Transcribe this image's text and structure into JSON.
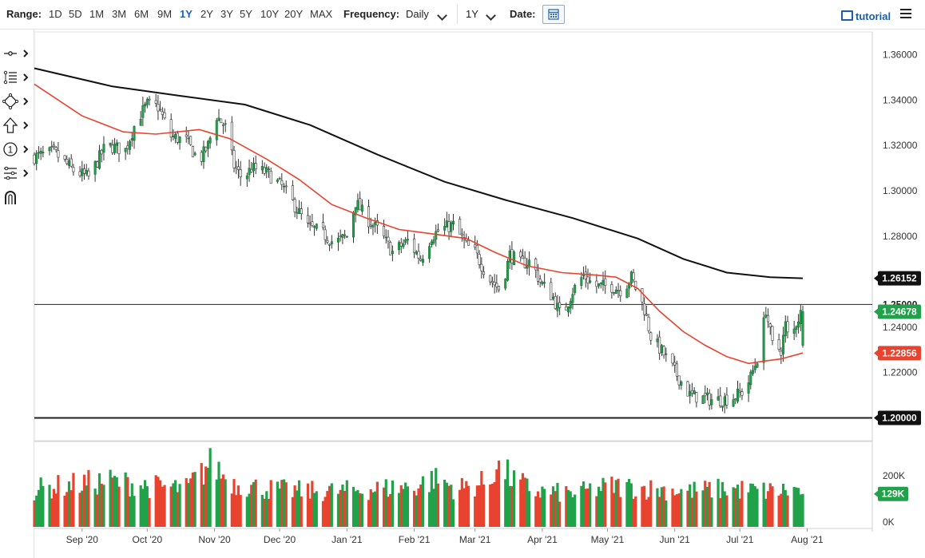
{
  "toolbar": {
    "range_label": "Range:",
    "ranges": [
      "1D",
      "5D",
      "1M",
      "3M",
      "6M",
      "9M",
      "1Y",
      "2Y",
      "3Y",
      "5Y",
      "10Y",
      "20Y",
      "MAX"
    ],
    "active_range": "1Y",
    "frequency_label": "Frequency:",
    "frequency_value": "Daily",
    "period_value": "1Y",
    "date_label": "Date:",
    "tutorial_label": "tutorial"
  },
  "tools": [
    {
      "name": "crosshair-tool-icon"
    },
    {
      "name": "trendline-tool-icon"
    },
    {
      "name": "shape-tool-icon"
    },
    {
      "name": "arrow-tool-icon"
    },
    {
      "name": "annotation-tool-icon"
    },
    {
      "name": "fibonacci-tool-icon"
    },
    {
      "name": "magnet-tool-icon"
    }
  ],
  "colors": {
    "up": "#21a24a",
    "down": "#e8432e",
    "ma_fast": "#e8432e",
    "ma_slow": "#111111",
    "tag_green": "#21a24a",
    "tag_red": "#e8432e",
    "tag_black": "#111111"
  },
  "chart_data": {
    "type": "candlestick",
    "price_axis": {
      "min": 1.19,
      "max": 1.37,
      "ticks": [
        "1.36000",
        "1.34000",
        "1.32000",
        "1.30000",
        "1.28000",
        "1.26000",
        "1.24000",
        "1.22000",
        "1.20000"
      ]
    },
    "x_ticks": [
      "Sep '20",
      "Oct '20",
      "Nov '20",
      "Dec '20",
      "Jan '21",
      "Feb '21",
      "Mar '21",
      "Apr '21",
      "May '21",
      "Jun '21",
      "Jul '21",
      "Aug '21"
    ],
    "x_range": [
      "2020-08-10",
      "2021-08-31"
    ],
    "closes": [
      [
        "2020-08-10",
        1.315
      ],
      [
        "2020-08-19",
        1.317
      ],
      [
        "2020-08-28",
        1.309
      ],
      [
        "2020-09-04",
        1.306
      ],
      [
        "2020-09-12",
        1.32
      ],
      [
        "2020-09-21",
        1.318
      ],
      [
        "2020-09-26",
        1.331
      ],
      [
        "2020-10-01",
        1.338
      ],
      [
        "2020-10-06",
        1.337
      ],
      [
        "2020-10-12",
        1.324
      ],
      [
        "2020-10-19",
        1.322
      ],
      [
        "2020-10-25",
        1.313
      ],
      [
        "2020-10-29",
        1.32
      ],
      [
        "2020-11-02",
        1.333
      ],
      [
        "2020-11-06",
        1.328
      ],
      [
        "2020-11-10",
        1.311
      ],
      [
        "2020-11-14",
        1.305
      ],
      [
        "2020-11-18",
        1.31
      ],
      [
        "2020-11-25",
        1.308
      ],
      [
        "2020-12-02",
        1.302
      ],
      [
        "2020-12-09",
        1.292
      ],
      [
        "2020-12-14",
        1.284
      ],
      [
        "2020-12-20",
        1.282
      ],
      [
        "2020-12-26",
        1.277
      ],
      [
        "2021-01-01",
        1.28
      ],
      [
        "2021-01-05",
        1.295
      ],
      [
        "2021-01-10",
        1.288
      ],
      [
        "2021-01-16",
        1.282
      ],
      [
        "2021-01-22",
        1.273
      ],
      [
        "2021-01-29",
        1.278
      ],
      [
        "2021-02-04",
        1.27
      ],
      [
        "2021-02-09",
        1.28
      ],
      [
        "2021-02-13",
        1.283
      ],
      [
        "2021-02-19",
        1.285
      ],
      [
        "2021-02-25",
        1.276
      ],
      [
        "2021-03-01",
        1.273
      ],
      [
        "2021-03-07",
        1.262
      ],
      [
        "2021-03-13",
        1.256
      ],
      [
        "2021-03-17",
        1.272
      ],
      [
        "2021-03-22",
        1.268
      ],
      [
        "2021-03-27",
        1.269
      ],
      [
        "2021-03-31",
        1.26
      ],
      [
        "2021-04-06",
        1.253
      ],
      [
        "2021-04-10",
        1.244
      ],
      [
        "2021-04-15",
        1.256
      ],
      [
        "2021-04-20",
        1.263
      ],
      [
        "2021-04-25",
        1.258
      ],
      [
        "2021-05-03",
        1.258
      ],
      [
        "2021-05-08",
        1.256
      ],
      [
        "2021-05-12",
        1.262
      ],
      [
        "2021-05-18",
        1.248
      ],
      [
        "2021-05-21",
        1.236
      ],
      [
        "2021-05-27",
        1.228
      ],
      [
        "2021-06-02",
        1.219
      ],
      [
        "2021-06-08",
        1.21
      ],
      [
        "2021-06-13",
        1.209
      ],
      [
        "2021-06-18",
        1.208
      ],
      [
        "2021-06-22",
        1.208
      ],
      [
        "2021-06-28",
        1.209
      ],
      [
        "2021-07-03",
        1.212
      ],
      [
        "2021-07-06",
        1.218
      ],
      [
        "2021-07-10",
        1.229
      ],
      [
        "2021-07-13",
        1.248
      ],
      [
        "2021-07-16",
        1.232
      ],
      [
        "2021-07-20",
        1.23
      ],
      [
        "2021-07-22",
        1.241
      ],
      [
        "2021-07-24",
        1.232
      ],
      [
        "2021-07-27",
        1.242
      ],
      [
        "2021-07-29",
        1.246
      ],
      [
        "2021-07-30",
        1.2468
      ]
    ],
    "series": [
      {
        "values_from": "closes",
        "kind": "ohlc"
      },
      {
        "kind": "moving-average-fast",
        "points": [
          [
            "2020-08-10",
            1.347
          ],
          [
            "2020-09-01",
            1.333
          ],
          [
            "2020-09-20",
            1.326
          ],
          [
            "2020-10-05",
            1.325
          ],
          [
            "2020-10-25",
            1.327
          ],
          [
            "2020-11-08",
            1.323
          ],
          [
            "2020-11-25",
            1.314
          ],
          [
            "2020-12-10",
            1.305
          ],
          [
            "2020-12-25",
            1.294
          ],
          [
            "2021-01-10",
            1.288
          ],
          [
            "2021-01-25",
            1.283
          ],
          [
            "2021-02-10",
            1.281
          ],
          [
            "2021-02-25",
            1.279
          ],
          [
            "2021-03-10",
            1.273
          ],
          [
            "2021-03-25",
            1.267
          ],
          [
            "2021-04-10",
            1.264
          ],
          [
            "2021-04-25",
            1.263
          ],
          [
            "2021-05-05",
            1.262
          ],
          [
            "2021-05-15",
            1.257
          ],
          [
            "2021-05-25",
            1.247
          ],
          [
            "2021-06-05",
            1.238
          ],
          [
            "2021-06-15",
            1.232
          ],
          [
            "2021-06-25",
            1.227
          ],
          [
            "2021-07-05",
            1.224
          ],
          [
            "2021-07-12",
            1.225
          ],
          [
            "2021-07-20",
            1.226
          ],
          [
            "2021-07-30",
            1.2286
          ]
        ]
      },
      {
        "kind": "moving-average-slow",
        "points": [
          [
            "2020-08-10",
            1.354
          ],
          [
            "2020-09-15",
            1.346
          ],
          [
            "2020-10-15",
            1.342
          ],
          [
            "2020-11-15",
            1.338
          ],
          [
            "2020-12-15",
            1.329
          ],
          [
            "2021-01-15",
            1.316
          ],
          [
            "2021-02-15",
            1.304
          ],
          [
            "2021-03-15",
            1.296
          ],
          [
            "2021-04-15",
            1.288
          ],
          [
            "2021-05-15",
            1.279
          ],
          [
            "2021-06-05",
            1.27
          ],
          [
            "2021-06-25",
            1.264
          ],
          [
            "2021-07-15",
            1.262
          ],
          [
            "2021-07-30",
            1.2615
          ]
        ]
      }
    ],
    "horizontal_lines": [
      {
        "value": 1.25,
        "label": "1.25000",
        "style": "thin"
      },
      {
        "value": 1.2,
        "label": "1.20000",
        "style": "thick"
      }
    ],
    "price_tags": [
      {
        "label": "1.26152",
        "value": 1.26152,
        "color": "black"
      },
      {
        "label": "1.24678",
        "value": 1.24678,
        "color": "green"
      },
      {
        "label": "1.22856",
        "value": 1.22856,
        "color": "red"
      },
      {
        "label": "1.20000",
        "value": 1.2,
        "color": "black"
      }
    ],
    "volume": {
      "axis_ticks": [
        "200K",
        "0K"
      ],
      "max": 300,
      "last_label": "129K",
      "profile": [
        [
          0,
          145
        ],
        [
          0.05,
          165
        ],
        [
          0.1,
          180
        ],
        [
          0.15,
          160
        ],
        [
          0.2,
          150
        ],
        [
          0.23,
          250
        ],
        [
          0.26,
          170
        ],
        [
          0.3,
          150
        ],
        [
          0.35,
          140
        ],
        [
          0.4,
          140
        ],
        [
          0.45,
          150
        ],
        [
          0.5,
          160
        ],
        [
          0.52,
          190
        ],
        [
          0.55,
          150
        ],
        [
          0.59,
          175
        ],
        [
          0.6,
          240
        ],
        [
          0.62,
          190
        ],
        [
          0.65,
          140
        ],
        [
          0.7,
          130
        ],
        [
          0.75,
          160
        ],
        [
          0.8,
          150
        ],
        [
          0.85,
          140
        ],
        [
          0.9,
          150
        ],
        [
          0.95,
          140
        ],
        [
          1,
          145
        ]
      ]
    }
  }
}
